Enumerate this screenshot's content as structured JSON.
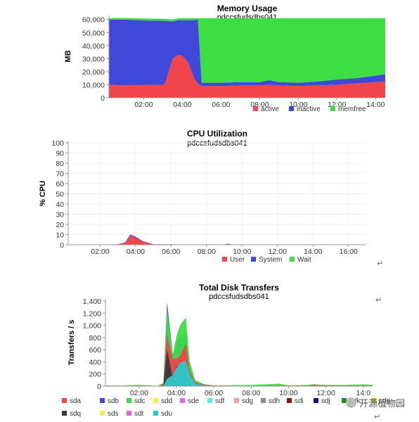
{
  "watermark": "开源植物园",
  "return_glyph": "↵",
  "chart_data": [
    {
      "type": "area",
      "title": "Memory Usage",
      "subtitle": "pdccsfudsdbs041",
      "ylabel": "MB",
      "xlabel": "",
      "ylim": [
        0,
        62000
      ],
      "yticks": [
        0,
        10000,
        20000,
        30000,
        40000,
        50000,
        60000
      ],
      "ytick_labels": [
        "0",
        "10,000",
        "20,000",
        "30,000",
        "40,000",
        "50,000",
        "60,000"
      ],
      "xticks": [
        2,
        4,
        6,
        8,
        10,
        12,
        14
      ],
      "xtick_labels": [
        "02:00",
        "04:00",
        "06:00",
        "08:00",
        "10:00",
        "12:00",
        "14:00"
      ],
      "xlim": [
        0.2,
        14.5
      ],
      "stacked": true,
      "legend": "bottom",
      "x": [
        0.2,
        1.0,
        2.0,
        3.0,
        3.1,
        3.5,
        3.8,
        4.0,
        4.3,
        4.6,
        4.8,
        5.0,
        6.0,
        7.0,
        8.0,
        8.5,
        9.0,
        10.0,
        11.0,
        12.0,
        13.0,
        14.0,
        14.5
      ],
      "series": [
        {
          "name": "active",
          "color": "#f0454b",
          "values": [
            10000,
            9500,
            9800,
            10000,
            11000,
            30000,
            33000,
            32000,
            27000,
            15000,
            11000,
            9000,
            9000,
            9500,
            9500,
            10000,
            9500,
            9000,
            9500,
            10000,
            11000,
            12000,
            12500
          ]
        },
        {
          "name": "inactive",
          "color": "#3f48d8",
          "values": [
            50000,
            50500,
            49500,
            49000,
            48000,
            28500,
            26500,
            27500,
            32500,
            44500,
            49000,
            2500,
            2500,
            2500,
            2500,
            3500,
            2500,
            2500,
            3000,
            4000,
            4000,
            5000,
            5500
          ]
        },
        {
          "name": "memfree",
          "color": "#3cde43",
          "values": [
            1000,
            1000,
            1500,
            1500,
            1500,
            1500,
            1500,
            1500,
            1500,
            1500,
            1000,
            49500,
            49500,
            49000,
            49000,
            47500,
            49000,
            49500,
            48500,
            47000,
            46000,
            44000,
            43000
          ]
        }
      ]
    },
    {
      "type": "area",
      "title": "CPU Utilization",
      "subtitle": "pdccsfudsdbs041",
      "ylabel": "% CPU",
      "xlabel": "",
      "ylim": [
        0,
        100
      ],
      "yticks": [
        0,
        10,
        20,
        30,
        40,
        50,
        60,
        70,
        80,
        90,
        100
      ],
      "ytick_labels": [
        "0",
        "10",
        "20",
        "30",
        "40",
        "50",
        "60",
        "70",
        "80",
        "90",
        "100"
      ],
      "xticks": [
        2,
        4,
        6,
        8,
        10,
        12,
        14,
        16
      ],
      "xtick_labels": [
        "02:00",
        "04:00",
        "06:00",
        "08:00",
        "10:00",
        "12:00",
        "14:00",
        "16:00"
      ],
      "xlim": [
        0.2,
        17
      ],
      "stacked": true,
      "legend": "bottom",
      "x": [
        0.2,
        2.0,
        3.0,
        3.4,
        3.7,
        4.0,
        4.4,
        5.0,
        6.0,
        8.0,
        9.0,
        9.2,
        9.4,
        10.0,
        11.0,
        12.0,
        14.0,
        16.0,
        17.0
      ],
      "series": [
        {
          "name": "User",
          "color": "#f0454b",
          "values": [
            0,
            0.2,
            0.3,
            2,
            9,
            7,
            3,
            0.5,
            0.3,
            0.2,
            0.2,
            1,
            0.2,
            0.2,
            0.2,
            0.2,
            0.2,
            0.2,
            0.2
          ]
        },
        {
          "name": "System",
          "color": "#3f48d8",
          "values": [
            0,
            0.1,
            0.1,
            0.3,
            1,
            1,
            0.5,
            0.1,
            0.1,
            0.1,
            0.1,
            0.2,
            0.1,
            0.1,
            0.1,
            0.1,
            0.1,
            0.1,
            0.1
          ]
        },
        {
          "name": "Wait",
          "color": "#3cde43",
          "values": [
            0,
            0,
            0,
            0,
            0,
            0,
            0,
            0,
            0,
            0,
            0,
            0,
            0,
            0,
            0,
            0,
            0,
            0,
            0
          ]
        }
      ]
    },
    {
      "type": "area",
      "title": "Total Disk Transfers",
      "subtitle": "pdccsfudsdbs041",
      "ylabel": "Transfers / s",
      "xlabel": "",
      "ylim": [
        0,
        1400
      ],
      "yticks": [
        0,
        200,
        400,
        600,
        800,
        1000,
        1200,
        1400
      ],
      "ytick_labels": [
        "0",
        "200",
        "400",
        "600",
        "800",
        "1,000",
        "1,200",
        "1,400"
      ],
      "xticks": [
        2,
        4,
        6,
        8,
        10,
        12,
        14
      ],
      "xtick_labels": [
        "02:00",
        "04:00",
        "06:00",
        "08:00",
        "10:00",
        "12:00",
        "14:0"
      ],
      "xlim": [
        0.2,
        14.5
      ],
      "stacked": false,
      "legend": "bottom",
      "x": [
        0.2,
        1.0,
        2.0,
        3.0,
        3.3,
        3.5,
        3.8,
        4.0,
        4.2,
        4.5,
        4.7,
        5.0,
        5.5,
        6.0,
        8.0,
        9.5,
        10.0,
        11.0,
        11.3,
        12.0,
        13.0,
        14.0,
        14.5
      ],
      "series": [
        {
          "name": "sda",
          "color": "#f0454b",
          "values": [
            10,
            5,
            10,
            5,
            30,
            850,
            450,
            450,
            500,
            700,
            250,
            60,
            20,
            10,
            5,
            10,
            10,
            10,
            20,
            10,
            10,
            10,
            10
          ]
        },
        {
          "name": "sdb",
          "color": "#3f48d8",
          "values": [
            5,
            5,
            5,
            5,
            30,
            1380,
            520,
            700,
            800,
            900,
            300,
            80,
            30,
            10,
            5,
            5,
            5,
            5,
            5,
            5,
            5,
            5,
            5
          ]
        },
        {
          "name": "sdc",
          "color": "#3cde43",
          "values": [
            10,
            10,
            20,
            5,
            50,
            1280,
            500,
            820,
            1000,
            1130,
            420,
            100,
            30,
            10,
            20,
            40,
            10,
            20,
            30,
            20,
            20,
            30,
            20
          ]
        },
        {
          "name": "sdd",
          "color": "#f2f24e",
          "values": [
            0,
            0,
            0,
            0,
            0,
            0,
            0,
            0,
            0,
            0,
            0,
            0,
            0,
            0,
            0,
            0,
            0,
            0,
            0,
            0,
            0,
            0,
            0
          ]
        },
        {
          "name": "sde",
          "color": "#e85fe8",
          "values": [
            0,
            0,
            0,
            0,
            0,
            0,
            0,
            0,
            0,
            0,
            0,
            0,
            0,
            0,
            0,
            0,
            0,
            0,
            0,
            0,
            0,
            0,
            0
          ]
        },
        {
          "name": "sdf",
          "color": "#5ee8e8",
          "values": [
            0,
            0,
            0,
            0,
            0,
            0,
            0,
            0,
            0,
            0,
            0,
            0,
            0,
            0,
            0,
            0,
            0,
            0,
            0,
            0,
            0,
            0,
            0
          ]
        },
        {
          "name": "sdg",
          "color": "#f0a3a3",
          "values": [
            0,
            0,
            0,
            0,
            0,
            0,
            0,
            0,
            0,
            0,
            0,
            0,
            0,
            0,
            0,
            0,
            0,
            0,
            0,
            0,
            0,
            0,
            0
          ]
        },
        {
          "name": "sdh",
          "color": "#8a8a8a",
          "values": [
            0,
            0,
            0,
            0,
            0,
            0,
            0,
            0,
            0,
            0,
            0,
            0,
            0,
            0,
            0,
            0,
            0,
            0,
            0,
            0,
            0,
            0,
            0
          ]
        },
        {
          "name": "sdi",
          "color": "#8b1010",
          "values": [
            0,
            0,
            0,
            0,
            0,
            0,
            0,
            0,
            0,
            0,
            0,
            0,
            0,
            0,
            0,
            0,
            0,
            0,
            0,
            0,
            0,
            0,
            0
          ]
        },
        {
          "name": "sdj",
          "color": "#101080",
          "values": [
            0,
            0,
            0,
            0,
            0,
            0,
            0,
            0,
            0,
            0,
            0,
            0,
            0,
            0,
            0,
            0,
            0,
            0,
            0,
            0,
            0,
            0,
            0
          ]
        },
        {
          "name": "sdk",
          "color": "#1e8c1e",
          "values": [
            0,
            0,
            0,
            0,
            0,
            0,
            0,
            0,
            0,
            0,
            0,
            0,
            0,
            0,
            0,
            0,
            0,
            0,
            0,
            0,
            0,
            0,
            0
          ]
        },
        {
          "name": "sdp",
          "color": "#c8c81e",
          "values": [
            0,
            0,
            0,
            0,
            0,
            0,
            0,
            0,
            0,
            0,
            0,
            0,
            0,
            0,
            0,
            0,
            0,
            0,
            0,
            0,
            0,
            0,
            0
          ]
        },
        {
          "name": "sdq",
          "color": "#3a3a3a",
          "values": [
            0,
            0,
            0,
            0,
            10,
            600,
            150,
            320,
            350,
            400,
            120,
            20,
            5,
            0,
            0,
            0,
            0,
            0,
            0,
            0,
            0,
            0,
            0
          ]
        },
        {
          "name": "sds",
          "color": "#f2f24e",
          "values": [
            0,
            0,
            0,
            0,
            0,
            0,
            0,
            0,
            0,
            0,
            0,
            0,
            0,
            0,
            0,
            0,
            0,
            0,
            0,
            0,
            0,
            0,
            0
          ]
        },
        {
          "name": "sdt",
          "color": "#e85fe8",
          "values": [
            0,
            0,
            0,
            0,
            0,
            0,
            0,
            0,
            0,
            0,
            0,
            0,
            0,
            0,
            0,
            0,
            0,
            0,
            0,
            0,
            0,
            0,
            0
          ]
        },
        {
          "name": "sdu",
          "color": "#30c8c8",
          "values": [
            0,
            0,
            0,
            0,
            5,
            120,
            180,
            300,
            380,
            420,
            200,
            40,
            10,
            0,
            0,
            0,
            0,
            0,
            0,
            0,
            0,
            0,
            0
          ]
        }
      ],
      "legend_names": [
        "sda",
        "sdb",
        "sdc",
        "sdd",
        "sde",
        "sdf",
        "sdg",
        "sdh",
        "sdi",
        "sdj",
        "sdk",
        "sdp",
        "sdq",
        "sds",
        "sdt",
        "sdu"
      ]
    }
  ]
}
